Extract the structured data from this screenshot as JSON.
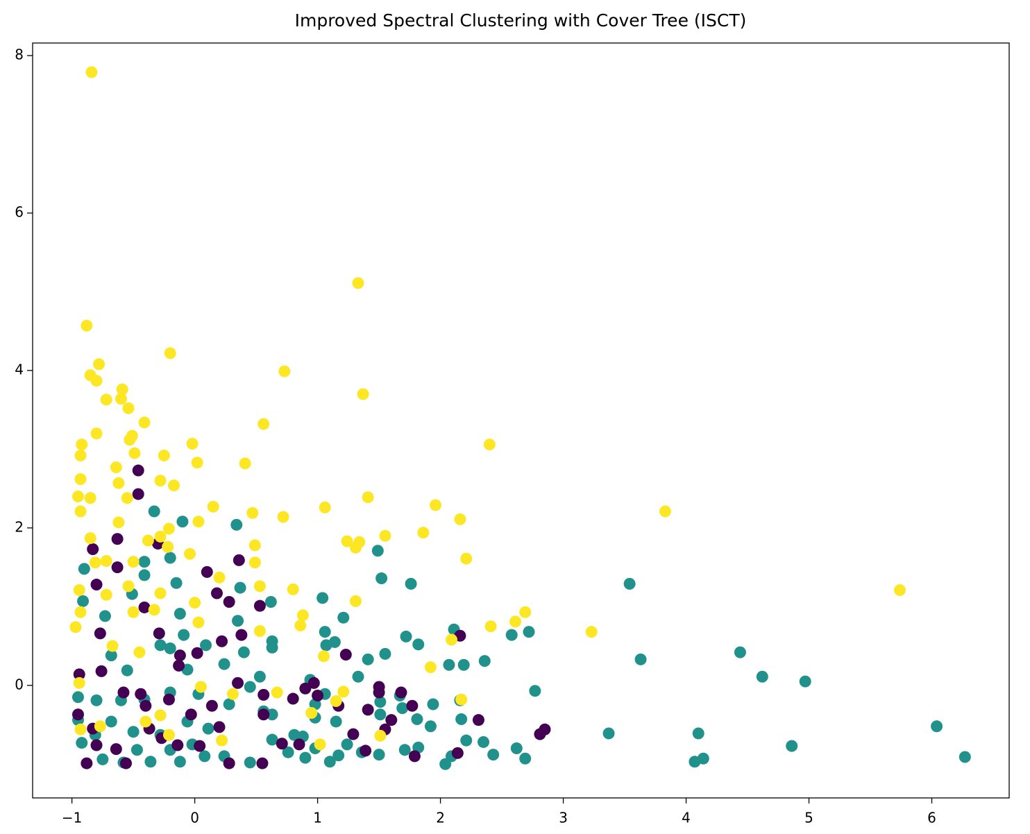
{
  "chart_data": {
    "type": "scatter",
    "title": "Improved Spectral Clustering with Cover Tree (ISCT)",
    "xlim": [
      -1.32,
      6.63
    ],
    "ylim": [
      -1.43,
      8.16
    ],
    "xticks": [
      {
        "value": -1,
        "label": "−1"
      },
      0,
      1,
      2,
      3,
      4,
      5,
      6
    ],
    "yticks": [
      0,
      2,
      4,
      6,
      8
    ],
    "series": [
      {
        "color": "#21918c",
        "x": [
          6.27,
          6.04,
          4.97,
          4.62,
          4.44,
          4.86,
          4.1,
          4.14,
          4.07,
          3.63,
          3.54,
          3.37,
          2.77,
          2.72,
          2.58,
          2.62,
          2.69,
          2.43,
          2.35,
          2.36,
          2.19,
          2.07,
          2.11,
          2.16,
          2.17,
          2.21,
          2.09,
          2.04,
          1.94,
          1.92,
          1.76,
          1.82,
          1.72,
          1.67,
          1.69,
          1.81,
          1.82,
          1.71,
          1.52,
          1.49,
          1.55,
          1.41,
          1.33,
          1.51,
          1.51,
          1.5,
          1.21,
          1.06,
          1.04,
          1.14,
          1.07,
          1.06,
          1.15,
          1.17,
          1.1,
          0.98,
          0.81,
          0.9,
          0.63,
          0.63,
          0.63,
          0.63,
          0.62,
          0.34,
          0.37,
          0.35,
          0.4,
          0.45,
          0.53,
          0.56,
          0.45,
          0.28,
          0.24,
          0.24,
          0.09,
          0.03,
          -0.1,
          -0.33,
          -0.2,
          -0.15,
          -0.12,
          -0.41,
          -0.41,
          -0.51,
          -0.9,
          -0.91,
          -0.73,
          -0.68,
          -0.55,
          -0.28,
          -0.2,
          -0.09,
          -0.06,
          -0.2,
          -0.41,
          -0.6,
          -0.8,
          -0.95,
          -0.95,
          -0.92,
          -0.75,
          -0.58,
          -0.47,
          -0.36,
          -0.2,
          -0.12,
          -0.02,
          0.08,
          0.11,
          -0.5,
          -0.68,
          -0.81,
          -0.28,
          -0.06,
          0.76,
          0.98,
          0.88,
          1.24,
          1.36,
          0.94,
          0.98
        ],
        "values": [
          -0.91,
          -0.52,
          0.05,
          0.11,
          0.42,
          -0.77,
          -0.61,
          -0.93,
          -0.97,
          0.33,
          1.29,
          -0.61,
          -0.07,
          0.68,
          0.64,
          -0.8,
          -0.93,
          -0.88,
          -0.72,
          0.31,
          0.26,
          0.26,
          0.71,
          -0.19,
          -0.43,
          -0.7,
          -0.9,
          -1.0,
          -0.24,
          -0.52,
          1.29,
          0.52,
          0.62,
          -0.13,
          -0.29,
          -0.43,
          -0.79,
          -0.82,
          1.36,
          1.71,
          0.4,
          0.33,
          0.11,
          -0.21,
          -0.37,
          -0.88,
          0.86,
          0.68,
          1.11,
          0.55,
          0.51,
          -0.11,
          -0.46,
          -0.89,
          -0.97,
          -0.41,
          -0.63,
          -0.92,
          -0.37,
          -0.69,
          0.56,
          0.48,
          1.06,
          2.04,
          1.24,
          0.82,
          0.42,
          -0.02,
          0.11,
          -0.33,
          -0.98,
          -0.24,
          0.27,
          -0.9,
          0.51,
          -0.11,
          2.08,
          2.21,
          1.62,
          1.3,
          0.91,
          1.57,
          1.4,
          1.16,
          1.48,
          1.07,
          0.88,
          0.38,
          0.19,
          0.51,
          0.47,
          0.64,
          0.2,
          -0.09,
          -0.18,
          -0.19,
          -0.19,
          -0.15,
          -0.44,
          -0.73,
          -0.94,
          -0.98,
          -0.82,
          -0.97,
          -0.82,
          -0.97,
          -0.75,
          -0.9,
          -0.55,
          -0.59,
          -0.46,
          -0.63,
          -0.63,
          -0.46,
          -0.85,
          -0.8,
          -0.65,
          -0.75,
          -0.85,
          0.07,
          -0.24
        ]
      },
      {
        "color": "#440154",
        "x": [
          -0.46,
          -0.46,
          -0.63,
          -0.3,
          -0.83,
          0.36,
          -0.63,
          0.1,
          -0.8,
          0.18,
          0.28,
          0.53,
          -0.41,
          -0.77,
          -0.29,
          2.16,
          0.22,
          0.38,
          -0.12,
          -0.13,
          0.02,
          1.23,
          1.41,
          1.5,
          1.5,
          0.56,
          0.56,
          0.8,
          0.9,
          0.97,
          1.0,
          1.17,
          2.31,
          1.68,
          1.77,
          1.6,
          1.55,
          2.85,
          2.81,
          2.14,
          1.79,
          1.29,
          1.39,
          0.71,
          0.85,
          0.55,
          0.28,
          0.04,
          -0.14,
          -0.27,
          -0.21,
          -0.03,
          -0.4,
          -0.58,
          -0.76,
          -0.94,
          -0.95,
          -0.88,
          -0.64,
          -0.56,
          -0.8,
          -0.44,
          -0.83,
          -0.37,
          0.14,
          0.2,
          0.35
        ],
        "values": [
          2.73,
          2.43,
          1.86,
          1.8,
          1.73,
          1.59,
          1.5,
          1.44,
          1.28,
          1.17,
          1.06,
          1.01,
          0.99,
          0.66,
          0.66,
          0.63,
          0.56,
          0.64,
          0.38,
          0.25,
          0.41,
          0.39,
          -0.31,
          -0.02,
          -0.09,
          -0.12,
          -0.37,
          -0.17,
          -0.04,
          0.03,
          -0.13,
          -0.26,
          -0.44,
          -0.09,
          -0.26,
          -0.44,
          -0.56,
          -0.56,
          -0.62,
          -0.86,
          -0.9,
          -0.62,
          -0.83,
          -0.74,
          -0.75,
          -0.99,
          -0.99,
          -0.77,
          -0.76,
          -0.67,
          -0.18,
          -0.37,
          -0.26,
          -0.09,
          0.18,
          0.14,
          -0.37,
          -0.99,
          -0.81,
          -0.99,
          -0.76,
          -0.11,
          -0.55,
          -0.55,
          -0.26,
          -0.53,
          0.03
        ]
      },
      {
        "color": "#fde725",
        "x": [
          -0.84,
          1.33,
          -0.88,
          -0.2,
          -0.78,
          0.73,
          -0.85,
          -0.8,
          1.37,
          -0.59,
          -0.72,
          -0.6,
          -0.54,
          -0.41,
          0.56,
          -0.8,
          -0.51,
          -0.53,
          -0.92,
          2.4,
          -0.02,
          -0.25,
          -0.93,
          0.02,
          0.41,
          -0.49,
          -0.64,
          -0.93,
          -0.62,
          -0.28,
          -0.17,
          -0.95,
          -0.85,
          -0.55,
          1.41,
          1.96,
          1.06,
          0.15,
          3.83,
          -0.93,
          0.47,
          0.03,
          0.72,
          2.16,
          -0.62,
          -0.21,
          -0.85,
          1.86,
          1.55,
          1.24,
          1.34,
          1.31,
          0.49,
          -0.28,
          -0.38,
          -0.22,
          -0.04,
          2.21,
          -0.72,
          0.49,
          -0.5,
          -0.81,
          0.2,
          0.53,
          -0.54,
          5.74,
          -0.94,
          -0.28,
          0.8,
          0.0,
          1.31,
          -0.72,
          2.69,
          2.61,
          2.41,
          0.88,
          0.86,
          3.23,
          0.03,
          0.53,
          -0.97,
          -0.93,
          2.09,
          1.05,
          1.92,
          -0.5,
          -0.33,
          -0.67,
          -0.45,
          -0.94,
          0.05,
          0.31,
          0.67,
          1.15,
          0.95,
          1.51,
          -0.28,
          -0.77,
          -0.4,
          -0.21,
          0.22,
          1.02,
          -0.93,
          2.17,
          1.21
        ],
        "values": [
          7.79,
          5.11,
          4.57,
          4.22,
          4.08,
          3.99,
          3.94,
          3.87,
          3.7,
          3.76,
          3.63,
          3.64,
          3.52,
          3.34,
          3.32,
          3.2,
          3.17,
          3.12,
          3.06,
          3.06,
          3.07,
          2.92,
          2.92,
          2.83,
          2.82,
          2.95,
          2.77,
          2.62,
          2.57,
          2.6,
          2.54,
          2.4,
          2.38,
          2.38,
          2.39,
          2.29,
          2.26,
          2.27,
          2.21,
          2.21,
          2.19,
          2.08,
          2.14,
          2.11,
          2.07,
          1.99,
          1.87,
          1.94,
          1.9,
          1.83,
          1.82,
          1.75,
          1.78,
          1.89,
          1.84,
          1.76,
          1.67,
          1.61,
          1.58,
          1.56,
          1.57,
          1.56,
          1.37,
          1.26,
          1.26,
          1.21,
          1.21,
          1.17,
          1.22,
          1.05,
          1.07,
          1.15,
          0.93,
          0.81,
          0.75,
          0.89,
          0.76,
          0.68,
          0.8,
          0.69,
          0.74,
          0.93,
          0.58,
          0.37,
          0.23,
          0.93,
          0.96,
          0.5,
          0.42,
          0.03,
          -0.02,
          -0.11,
          -0.09,
          -0.2,
          -0.35,
          -0.64,
          -0.38,
          -0.52,
          -0.46,
          -0.63,
          -0.7,
          -0.75,
          -0.56,
          -0.18,
          -0.08
        ]
      }
    ]
  }
}
